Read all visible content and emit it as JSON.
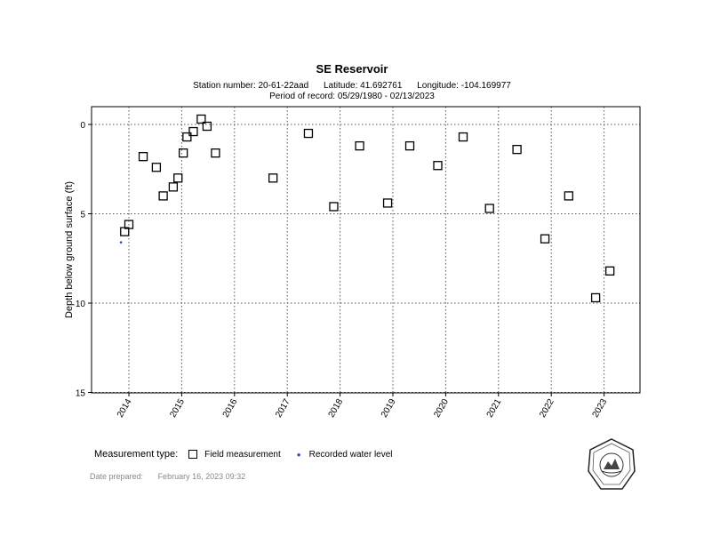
{
  "header": {
    "title": "SE Reservoir",
    "station": "Station number: 20-61-22aad",
    "latitude": "Latitude: 41.692761",
    "longitude": "Longitude: -104.169977",
    "period": "Period of record: 05/29/1980 - 02/13/2023"
  },
  "chart_data": {
    "type": "scatter",
    "ylabel": "Depth below ground surface (ft)",
    "xlabel": "",
    "xlim": [
      2013.3,
      2023.7
    ],
    "ylim": [
      0,
      15
    ],
    "y_inverted": true,
    "x_ticks": [
      "2014",
      "2015",
      "2016",
      "2017",
      "2018",
      "2019",
      "2020",
      "2021",
      "2022",
      "2023"
    ],
    "y_ticks": [
      "0",
      "5",
      "10",
      "15"
    ],
    "grid": true,
    "series": [
      {
        "name": "Field measurement",
        "marker": "square",
        "color": "#000000",
        "points": [
          {
            "x": 2013.92,
            "y": 6.0
          },
          {
            "x": 2014.0,
            "y": 5.6
          },
          {
            "x": 2014.27,
            "y": 1.8
          },
          {
            "x": 2014.52,
            "y": 2.4
          },
          {
            "x": 2014.65,
            "y": 4.0
          },
          {
            "x": 2014.84,
            "y": 3.5
          },
          {
            "x": 2014.93,
            "y": 3.0
          },
          {
            "x": 2015.03,
            "y": 1.6
          },
          {
            "x": 2015.1,
            "y": 0.7
          },
          {
            "x": 2015.22,
            "y": 0.4
          },
          {
            "x": 2015.37,
            "y": -0.3
          },
          {
            "x": 2015.48,
            "y": 0.1
          },
          {
            "x": 2015.64,
            "y": 1.6
          },
          {
            "x": 2016.73,
            "y": 3.0
          },
          {
            "x": 2017.4,
            "y": 0.5
          },
          {
            "x": 2017.88,
            "y": 4.6
          },
          {
            "x": 2018.37,
            "y": 1.2
          },
          {
            "x": 2018.9,
            "y": 4.4
          },
          {
            "x": 2019.32,
            "y": 1.2
          },
          {
            "x": 2019.85,
            "y": 2.3
          },
          {
            "x": 2020.33,
            "y": 0.7
          },
          {
            "x": 2020.83,
            "y": 4.7
          },
          {
            "x": 2021.35,
            "y": 1.4
          },
          {
            "x": 2021.88,
            "y": 6.4
          },
          {
            "x": 2022.33,
            "y": 4.0
          },
          {
            "x": 2022.84,
            "y": 9.7
          },
          {
            "x": 2023.11,
            "y": 8.2
          }
        ]
      },
      {
        "name": "Recorded water level",
        "marker": "dot",
        "color": "#1f4fbf",
        "points": [
          {
            "x": 2013.85,
            "y": 6.6
          }
        ]
      }
    ]
  },
  "legend": {
    "title": "Measurement type:",
    "field": "Field measurement",
    "recorded": "Recorded water level"
  },
  "footer": {
    "prepared_label": "Date prepared:",
    "prepared_date": "February 16, 2023 09:32"
  },
  "seal": {
    "text": "Wyoming State Engineer's Office"
  }
}
